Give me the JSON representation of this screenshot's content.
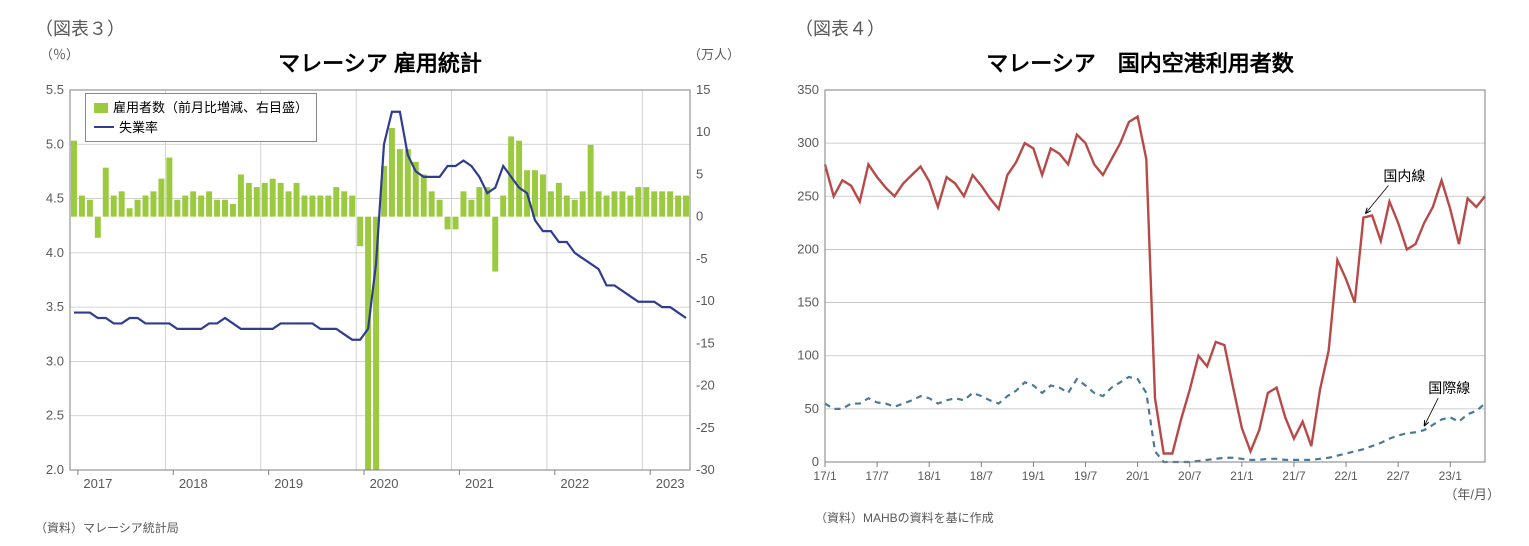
{
  "chart3": {
    "fig_label": "（図表３）",
    "title": "マレーシア 雇用統計",
    "left_unit": "（％）",
    "right_unit": "（万人）",
    "left_axis": {
      "min": 2.0,
      "max": 5.5,
      "step": 0.5
    },
    "right_axis": {
      "min": -30,
      "max": 15,
      "step": 5
    },
    "x_labels": [
      "2017",
      "2018",
      "2019",
      "2020",
      "2021",
      "2022",
      "2023"
    ],
    "bar_color": "#9bca3e",
    "line_color": "#2f3c8f",
    "grid_color": "#c8c8c8",
    "plot_bg": "#ffffff",
    "border_color": "#7f7f7f",
    "n_points": 78,
    "bars": [
      9.0,
      2.5,
      2.0,
      -2.5,
      5.8,
      2.5,
      3.0,
      1.0,
      2.0,
      2.5,
      3.0,
      4.5,
      7.0,
      2.0,
      2.5,
      3.0,
      2.5,
      3.0,
      2.0,
      2.0,
      1.5,
      5.0,
      4.0,
      3.5,
      4.0,
      4.5,
      4.0,
      3.0,
      4.0,
      2.5,
      2.5,
      2.5,
      2.5,
      3.5,
      3.0,
      2.5,
      -3.5,
      -30.0,
      -30.0,
      6.0,
      10.5,
      8.0,
      8.0,
      6.5,
      5.0,
      3.0,
      2.0,
      -1.5,
      -1.5,
      3.0,
      2.0,
      3.5,
      3.5,
      -6.5,
      2.5,
      9.5,
      9.0,
      5.5,
      5.5,
      5.0,
      3.0,
      4.0,
      2.5,
      2.0,
      3.0,
      8.5,
      3.0,
      2.5,
      3.0,
      3.0,
      2.5,
      3.5,
      3.5,
      3.0,
      3.0,
      3.0,
      2.5,
      2.5
    ],
    "line": [
      3.45,
      3.45,
      3.45,
      3.4,
      3.4,
      3.35,
      3.35,
      3.4,
      3.4,
      3.35,
      3.35,
      3.35,
      3.35,
      3.3,
      3.3,
      3.3,
      3.3,
      3.35,
      3.35,
      3.4,
      3.35,
      3.3,
      3.3,
      3.3,
      3.3,
      3.3,
      3.35,
      3.35,
      3.35,
      3.35,
      3.35,
      3.3,
      3.3,
      3.3,
      3.25,
      3.2,
      3.2,
      3.3,
      3.9,
      5.0,
      5.3,
      5.3,
      4.9,
      4.75,
      4.7,
      4.7,
      4.7,
      4.8,
      4.8,
      4.85,
      4.8,
      4.7,
      4.55,
      4.6,
      4.8,
      4.7,
      4.6,
      4.55,
      4.3,
      4.2,
      4.2,
      4.1,
      4.1,
      4.0,
      3.95,
      3.9,
      3.85,
      3.7,
      3.7,
      3.65,
      3.6,
      3.55,
      3.55,
      3.55,
      3.5,
      3.5,
      3.45,
      3.4
    ],
    "legend1": "雇用者数（前月比増減、右目盛）",
    "legend2": "失業率",
    "source": "（資料）マレーシア統計局"
  },
  "chart4": {
    "fig_label": "（図表４）",
    "title": "マレーシア　国内空港利用者数",
    "y_axis": {
      "min": 0,
      "max": 350,
      "step": 50
    },
    "x_labels": [
      "17/1",
      "17/7",
      "18/1",
      "18/7",
      "19/1",
      "19/7",
      "20/1",
      "20/7",
      "21/1",
      "21/7",
      "22/1",
      "22/7",
      "23/1"
    ],
    "domestic_color": "#b74a48",
    "intl_color": "#4a7a99",
    "grid_color": "#bfbfbf",
    "border_color": "#7f7f7f",
    "n_points": 77,
    "x_axis_label": "（年/月）",
    "label_domestic": "国内線",
    "label_intl": "国際線",
    "source": "（資料）MAHBの資料を基に作成",
    "domestic": [
      280,
      250,
      265,
      260,
      245,
      280,
      268,
      258,
      250,
      262,
      270,
      278,
      264,
      240,
      268,
      262,
      250,
      270,
      260,
      248,
      238,
      270,
      282,
      300,
      295,
      270,
      295,
      290,
      280,
      308,
      300,
      280,
      270,
      285,
      300,
      320,
      325,
      285,
      60,
      8,
      8,
      40,
      68,
      100,
      90,
      113,
      110,
      70,
      32,
      10,
      30,
      65,
      70,
      42,
      22,
      38,
      15,
      68,
      105,
      190,
      172,
      150,
      230,
      232,
      208,
      245,
      225,
      200,
      205,
      225,
      240,
      265,
      238,
      205,
      248,
      240,
      250
    ],
    "intl": [
      55,
      50,
      50,
      55,
      55,
      60,
      56,
      55,
      52,
      55,
      58,
      62,
      60,
      55,
      58,
      60,
      58,
      65,
      62,
      58,
      55,
      62,
      67,
      75,
      72,
      65,
      72,
      70,
      65,
      78,
      72,
      65,
      62,
      70,
      75,
      80,
      78,
      65,
      10,
      0,
      0,
      0,
      0,
      1,
      2,
      3,
      4,
      4,
      3,
      2,
      2,
      3,
      3,
      2,
      2,
      2,
      2,
      3,
      4,
      6,
      8,
      10,
      12,
      15,
      18,
      22,
      25,
      27,
      28,
      30,
      35,
      40,
      42,
      38,
      45,
      48,
      55
    ]
  }
}
